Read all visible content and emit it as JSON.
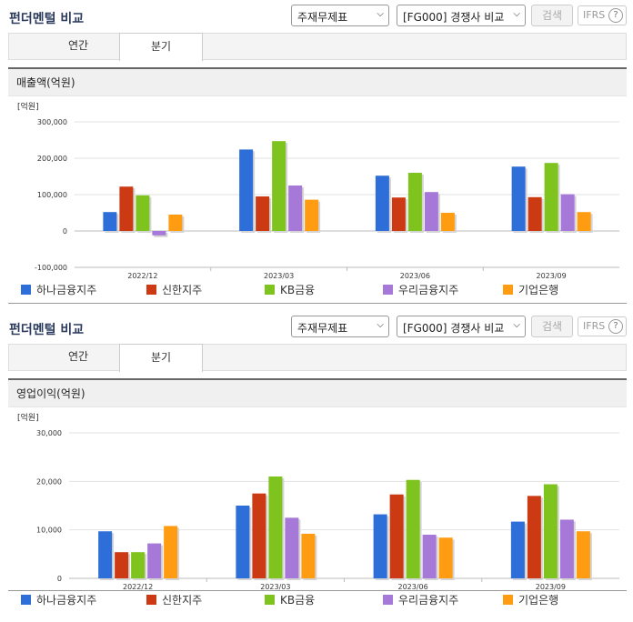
{
  "colors": {
    "hana": "#2e6ed8",
    "shinhan": "#cc3a14",
    "kb": "#7ec31e",
    "woori": "#a678d8",
    "ibk": "#ff9c12"
  },
  "panels": [
    {
      "title": "펀더멘털 비교",
      "select_statement": "주재무제표",
      "select_compare": "[FG000] 경쟁사 비교",
      "search_label": "검색",
      "ifrs_label": "IFRS",
      "help_label": "?",
      "tab_annual": "연간",
      "tab_quarter": "분기",
      "chart_title": "매출액(억원)",
      "unit_label": "[억원]"
    },
    {
      "title": "펀더멘털 비교",
      "select_statement": "주재무제표",
      "select_compare": "[FG000] 경쟁사 비교",
      "search_label": "검색",
      "ifrs_label": "IFRS",
      "help_label": "?",
      "tab_annual": "연간",
      "tab_quarter": "분기",
      "chart_title": "영업이익(억원)",
      "unit_label": "[억원]"
    }
  ],
  "chart_data": [
    {
      "type": "bar",
      "title": "매출액(억원)",
      "ylabel": "[억원]",
      "categories": [
        "2022/12",
        "2023/03",
        "2023/06",
        "2023/09"
      ],
      "ylim": [
        -100000,
        300000
      ],
      "yticks": [
        -100000,
        0,
        100000,
        200000,
        300000
      ],
      "ytick_labels": [
        "-100,000",
        "0",
        "100,000",
        "200,000",
        "300,000"
      ],
      "legend_position": "bottom",
      "series": [
        {
          "name": "하나금융지주",
          "color": "#2e6ed8",
          "values": [
            52000,
            224000,
            152000,
            177000
          ]
        },
        {
          "name": "신한지주",
          "color": "#cc3a14",
          "values": [
            122000,
            95000,
            92000,
            93000
          ]
        },
        {
          "name": "KB금융",
          "color": "#7ec31e",
          "values": [
            98000,
            247000,
            160000,
            187000
          ]
        },
        {
          "name": "우리금융지주",
          "color": "#a678d8",
          "values": [
            -12000,
            125000,
            107000,
            101000
          ]
        },
        {
          "name": "기업은행",
          "color": "#ff9c12",
          "values": [
            45000,
            86000,
            50000,
            52000
          ]
        }
      ]
    },
    {
      "type": "bar",
      "title": "영업이익(억원)",
      "ylabel": "[억원]",
      "categories": [
        "2022/12",
        "2023/03",
        "2023/06",
        "2023/09"
      ],
      "ylim": [
        0,
        30000
      ],
      "yticks": [
        0,
        10000,
        20000,
        30000
      ],
      "ytick_labels": [
        "0",
        "10,000",
        "20,000",
        "30,000"
      ],
      "legend_position": "bottom",
      "series": [
        {
          "name": "하나금융지주",
          "color": "#2e6ed8",
          "values": [
            9700,
            15000,
            13200,
            11700
          ]
        },
        {
          "name": "신한지주",
          "color": "#cc3a14",
          "values": [
            5400,
            17500,
            17300,
            17000
          ]
        },
        {
          "name": "KB금융",
          "color": "#7ec31e",
          "values": [
            5400,
            21000,
            20300,
            19400
          ]
        },
        {
          "name": "우리금융지주",
          "color": "#a678d8",
          "values": [
            7200,
            12500,
            9000,
            12100
          ]
        },
        {
          "name": "기업은행",
          "color": "#ff9c12",
          "values": [
            10800,
            9200,
            8400,
            9700
          ]
        }
      ]
    }
  ]
}
